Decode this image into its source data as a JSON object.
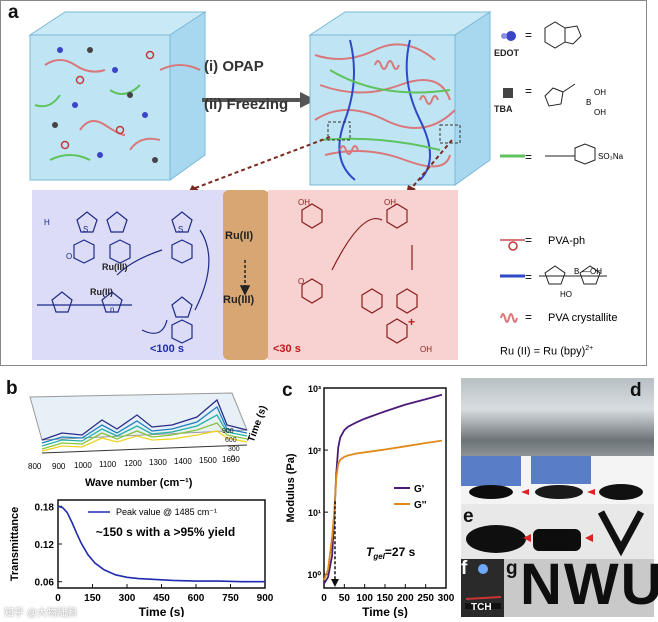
{
  "figure": {
    "panel_labels": {
      "a": "a",
      "b": "b",
      "c": "c",
      "d": "d",
      "e": "e",
      "f": "f",
      "g": "g"
    },
    "panel_a": {
      "step1": "(i) OPAP",
      "step2": "(ii) Freezing",
      "legend": {
        "edot": "EDOT",
        "tba": "TBA",
        "eq": "=",
        "pva_ph": "PVA-ph",
        "pva_crystallite": "PVA crystallite",
        "ru_eq": "Ru (II)  =  Ru (bpy)",
        "ru_sup": "2+",
        "sulfonate": "SO₃Na",
        "boronic_oh1": "OH",
        "boronic_b": "B",
        "boronic_oh2": "OH",
        "polymer_b": "B",
        "polymer_oh": "—OH",
        "polymer_ho": "HO"
      },
      "mechanism": {
        "ru3_left": "Ru(III)",
        "ru2_left": "Ru(II)",
        "ru2_center": "Ru(II)",
        "ru3_center": "Ru(III)",
        "time_left": "<100 s",
        "time_right": "<30 s",
        "plus": "+",
        "s": "S",
        "h": "H",
        "o": "O",
        "oh": "OH",
        "n": "n"
      }
    },
    "panel_b": {
      "xlabel": "Wave number (cm⁻¹)",
      "time_axis": "Time (s)",
      "x_ticks": [
        "800",
        "900",
        "1000",
        "1100",
        "1200",
        "1300",
        "1400",
        "1500",
        "1600"
      ],
      "time_ticks": [
        "900",
        "600",
        "300",
        "0"
      ],
      "legend": "Peak value @ 1485 cm⁻¹",
      "annotation": "~150 s with a >95% yield"
    },
    "panel_c": {
      "tgel_label": "T",
      "tgel_sub": "gel",
      "tgel_value": "=27 s",
      "legend_gp": "G'",
      "legend_gpp": "G''"
    },
    "panel_f": {
      "label": "TCH"
    },
    "panel_g": {
      "text": "NWU"
    },
    "watermark": "知乎 @大物陆鹏"
  },
  "chart_data": [
    {
      "type": "line",
      "title": "",
      "xlabel": "Time (s)",
      "ylabel": "Transmittance",
      "xlim": [
        0,
        900
      ],
      "ylim": [
        0.05,
        0.19
      ],
      "x_ticks": [
        "0",
        "150",
        "300",
        "450",
        "600",
        "750",
        "900"
      ],
      "y_ticks": [
        "0.06",
        "0.12",
        "0.18"
      ],
      "series": [
        {
          "name": "Peak value @ 1485 cm⁻¹",
          "color": "#1f2bb0",
          "x": [
            0,
            20,
            40,
            60,
            80,
            100,
            130,
            160,
            200,
            250,
            300,
            350,
            400,
            500,
            600,
            700,
            800,
            900
          ],
          "y": [
            0.18,
            0.178,
            0.17,
            0.155,
            0.138,
            0.122,
            0.103,
            0.09,
            0.079,
            0.071,
            0.067,
            0.065,
            0.064,
            0.062,
            0.061,
            0.061,
            0.06,
            0.06
          ]
        }
      ]
    },
    {
      "type": "line",
      "title": "",
      "xlabel": "Time (s)",
      "ylabel": "Modulus (Pa)",
      "yscale": "log",
      "xlim": [
        0,
        300
      ],
      "ylim": [
        0.6,
        1000
      ],
      "x_ticks": [
        "0",
        "50",
        "100",
        "150",
        "200",
        "250",
        "300"
      ],
      "y_ticks": [
        "10⁰",
        "10¹",
        "10²",
        "10³"
      ],
      "annotation_x": 27,
      "series": [
        {
          "name": "G'",
          "color": "#4b1a7a",
          "x": [
            0,
            10,
            20,
            25,
            27,
            30,
            35,
            40,
            50,
            60,
            80,
            100,
            150,
            200,
            250,
            290
          ],
          "y": [
            0.7,
            0.9,
            2.0,
            8.0,
            15.0,
            40.0,
            110,
            160,
            210,
            240,
            280,
            320,
            420,
            540,
            660,
            780
          ]
        },
        {
          "name": "G''",
          "color": "#e08a1a",
          "x": [
            0,
            10,
            20,
            25,
            27,
            30,
            35,
            40,
            50,
            60,
            80,
            100,
            150,
            200,
            250,
            290
          ],
          "y": [
            0.8,
            1.2,
            4.0,
            10.0,
            15.0,
            35.0,
            60,
            70,
            78,
            82,
            88,
            92,
            102,
            115,
            130,
            142
          ]
        }
      ]
    }
  ]
}
